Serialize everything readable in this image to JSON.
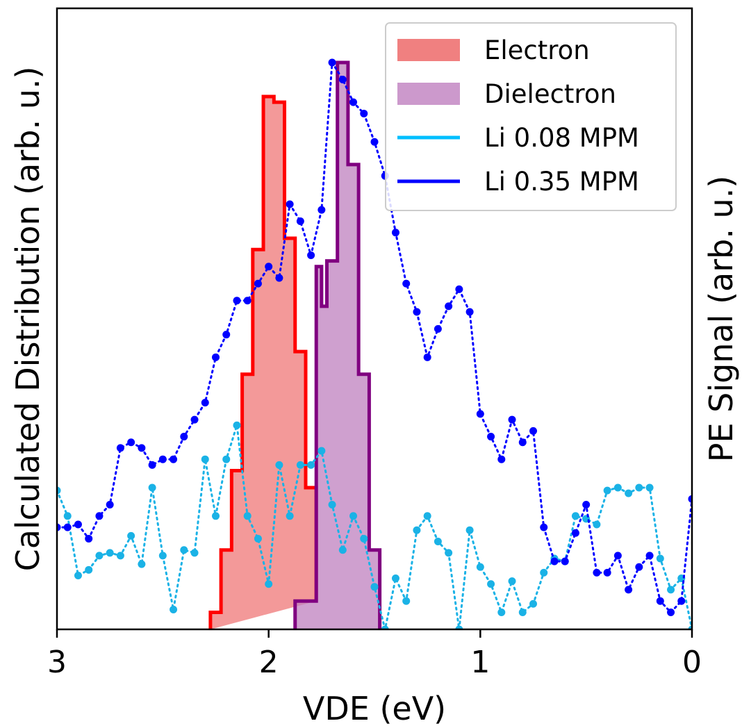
{
  "chart_data": {
    "type": "line",
    "title": "",
    "xlabel": "VDE (eV)",
    "ylabel_left": "Calculated Distribution (arb. u.)",
    "ylabel_right": "PE Signal (arb. u.)",
    "xlim": [
      3,
      0
    ],
    "xticks": [
      3,
      2,
      1,
      0
    ],
    "xtick_labels": [
      "3",
      "2",
      "1",
      "0"
    ],
    "ylim": [
      0,
      1
    ],
    "grid": false,
    "legend": {
      "placement": "top-right",
      "entries": [
        {
          "name": "Electron",
          "kind": "patch",
          "color": "#f08080"
        },
        {
          "name": "Dielectron",
          "kind": "patch",
          "color": "#cc99cc"
        },
        {
          "name": "Li 0.08 MPM",
          "kind": "line",
          "color": "#00bfff"
        },
        {
          "name": "Li 0.35 MPM",
          "kind": "line",
          "color": "#0000ff"
        }
      ]
    },
    "histograms": [
      {
        "name": "Electron",
        "fill": "#f08080",
        "fill_opacity": 0.8,
        "edge": "#ff0000",
        "edges": [
          2.275,
          2.225,
          2.175,
          2.125,
          2.075,
          2.025,
          1.975,
          1.925,
          1.875,
          1.825,
          1.775
        ],
        "values": [
          0.03,
          0.14,
          0.28,
          0.45,
          0.67,
          0.94,
          0.93,
          0.69,
          0.49,
          0.25,
          0.05
        ]
      },
      {
        "name": "Dielectron",
        "fill": "#bf80bf",
        "fill_opacity": 0.75,
        "edge": "#800080",
        "edges": [
          1.875,
          1.775,
          1.75,
          1.725,
          1.675,
          1.625,
          1.575,
          1.525,
          1.475
        ],
        "values": [
          0.05,
          0.64,
          0.57,
          0.65,
          1.0,
          0.82,
          0.45,
          0.14,
          0
        ]
      }
    ],
    "series": [
      {
        "name": "Li 0.08 MPM",
        "color": "#1ab2e6",
        "x": [
          3.0,
          2.95,
          2.9,
          2.85,
          2.8,
          2.75,
          2.7,
          2.65,
          2.6,
          2.55,
          2.5,
          2.45,
          2.4,
          2.35,
          2.3,
          2.25,
          2.2,
          2.15,
          2.1,
          2.05,
          2.0,
          1.95,
          1.9,
          1.85,
          1.8,
          1.75,
          1.7,
          1.65,
          1.6,
          1.55,
          1.5,
          1.45,
          1.4,
          1.35,
          1.3,
          1.25,
          1.2,
          1.15,
          1.1,
          1.05,
          1.0,
          0.95,
          0.9,
          0.85,
          0.8,
          0.75,
          0.7,
          0.65,
          0.6,
          0.55,
          0.5,
          0.45,
          0.4,
          0.35,
          0.3,
          0.25,
          0.2,
          0.15,
          0.1,
          0.05,
          0.0
        ],
        "y": [
          0.245,
          0.2,
          0.095,
          0.105,
          0.13,
          0.135,
          0.13,
          0.165,
          0.115,
          0.25,
          0.13,
          0.035,
          0.14,
          0.135,
          0.3,
          0.2,
          0.3,
          0.36,
          0.2,
          0.16,
          0.08,
          0.29,
          0.2,
          0.29,
          0.29,
          0.315,
          0.22,
          0.14,
          0.2,
          0.16,
          0.075,
          0.0,
          0.09,
          0.05,
          0.175,
          0.2,
          0.155,
          0.135,
          0.0,
          0.175,
          0.11,
          0.08,
          0.03,
          0.085,
          0.03,
          0.045,
          0.1,
          0.125,
          0.12,
          0.2,
          0.195,
          0.185,
          0.245,
          0.25,
          0.24,
          0.25,
          0.25,
          0.125,
          0.07,
          0.09,
          0.0
        ]
      },
      {
        "name": "Li 0.35 MPM",
        "color": "#0000ff",
        "x": [
          3.0,
          2.95,
          2.9,
          2.85,
          2.8,
          2.75,
          2.7,
          2.65,
          2.6,
          2.55,
          2.5,
          2.45,
          2.4,
          2.35,
          2.3,
          2.25,
          2.2,
          2.15,
          2.1,
          2.05,
          2.0,
          1.95,
          1.9,
          1.85,
          1.8,
          1.75,
          1.7,
          1.65,
          1.6,
          1.55,
          1.5,
          1.45,
          1.4,
          1.35,
          1.3,
          1.25,
          1.2,
          1.15,
          1.1,
          1.05,
          1.0,
          0.95,
          0.9,
          0.85,
          0.8,
          0.75,
          0.7,
          0.65,
          0.6,
          0.55,
          0.5,
          0.45,
          0.4,
          0.35,
          0.3,
          0.25,
          0.2,
          0.15,
          0.1,
          0.05,
          0.0
        ],
        "y": [
          0.18,
          0.18,
          0.185,
          0.16,
          0.2,
          0.22,
          0.32,
          0.33,
          0.32,
          0.29,
          0.3,
          0.3,
          0.34,
          0.37,
          0.4,
          0.48,
          0.52,
          0.58,
          0.58,
          0.61,
          0.64,
          0.62,
          0.75,
          0.72,
          0.66,
          0.74,
          1.0,
          0.97,
          0.93,
          0.91,
          0.86,
          0.8,
          0.7,
          0.61,
          0.56,
          0.48,
          0.53,
          0.57,
          0.6,
          0.56,
          0.38,
          0.34,
          0.3,
          0.37,
          0.33,
          0.35,
          0.18,
          0.12,
          0.12,
          0.17,
          0.22,
          0.1,
          0.1,
          0.13,
          0.07,
          0.11,
          0.13,
          0.05,
          0.03,
          0.05,
          0.23
        ]
      }
    ]
  }
}
